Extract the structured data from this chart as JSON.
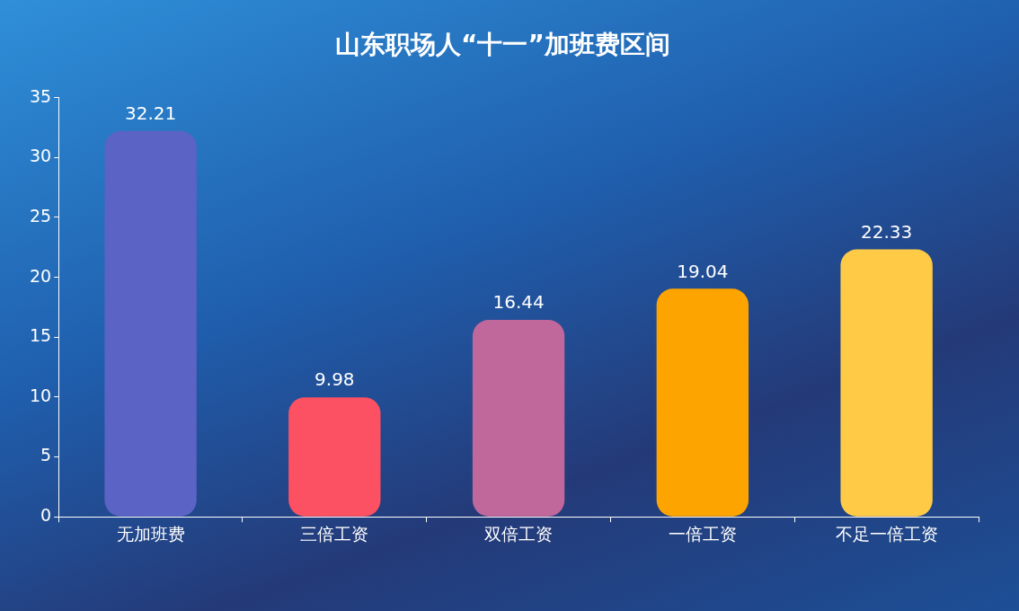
{
  "chart_data": {
    "type": "bar",
    "title": "山东职场人“十一”加班费区间",
    "categories": [
      "无加班费",
      "三倍工资",
      "双倍工资",
      "一倍工资",
      "不足一倍工资"
    ],
    "values": [
      32.21,
      9.98,
      16.44,
      19.04,
      22.33
    ],
    "colors": [
      "#5b63c4",
      "#fc5063",
      "#c0679b",
      "#fda400",
      "#ffcb47"
    ],
    "ylim": [
      0,
      35
    ],
    "yticks": [
      0,
      5,
      10,
      15,
      20,
      25,
      30,
      35
    ],
    "grid": false,
    "data_labels": true,
    "legend": false
  }
}
